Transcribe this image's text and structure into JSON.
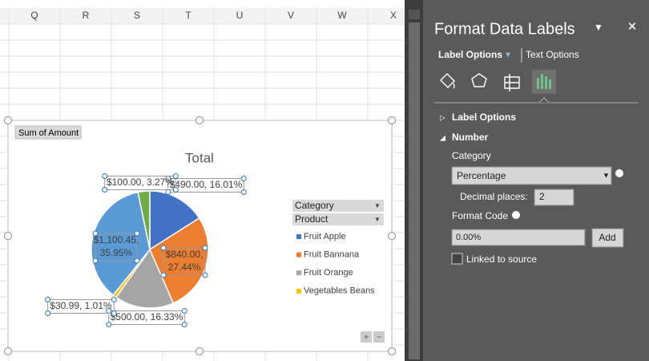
{
  "sheet": {
    "columns": [
      "Q",
      "R",
      "S",
      "T",
      "U",
      "V",
      "W",
      "X"
    ]
  },
  "chart_data": {
    "type": "pie",
    "title": "Total",
    "field_button": "Sum of Amount",
    "legend_fields": [
      "Category",
      "Product"
    ],
    "categories": [
      "Fruit Apple",
      "Fruit Bannana",
      "Fruit Orange",
      "Vegetables Beans",
      null,
      null
    ],
    "values": [
      490,
      840,
      500,
      30.99,
      1100.45,
      100
    ],
    "value_labels": [
      "$490.00, 16.01%",
      "$840.00, 27.44%",
      "$500.00, 16.33%",
      "$30.99, 1.01%",
      "$1,100.45, 35.95%",
      "$100.00, 3.27%"
    ],
    "colors": [
      "#4472c4",
      "#ed7d31",
      "#a5a5a5",
      "#ffc000",
      "#5b9bd5",
      "#70ad47"
    ],
    "legend": "right"
  },
  "panel": {
    "title": "Format Data Labels",
    "tabs": [
      "Label Options",
      "Text Options"
    ],
    "sections": [
      "Label Options",
      "Number"
    ],
    "category_label": "Category",
    "category_value": "Percentage",
    "decimal_label": "Decimal places:",
    "decimal_value": "2",
    "format_code_label": "Format Code",
    "format_code_value": "0.00%",
    "add_button": "Add",
    "linked_label": "Linked to source"
  }
}
